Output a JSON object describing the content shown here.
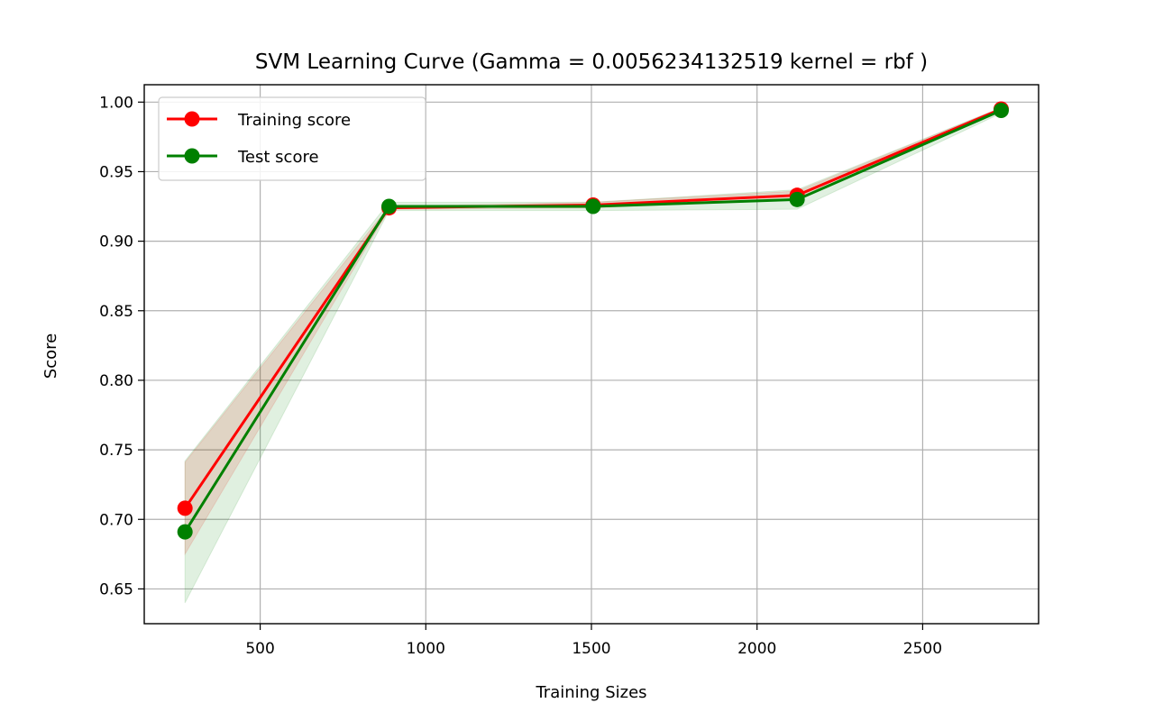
{
  "chart_data": {
    "type": "line",
    "title": "SVM Learning Curve (Gamma = 0.0056234132519 kernel =  rbf )",
    "xlabel": "Training Sizes",
    "ylabel": "Score",
    "xlim": [
      150,
      2850
    ],
    "ylim": [
      0.625,
      1.0125
    ],
    "xticks": [
      500,
      1000,
      1500,
      2000,
      2500
    ],
    "xtick_labels": [
      "500",
      "1000",
      "1500",
      "2000",
      "2500"
    ],
    "yticks": [
      0.65,
      0.7,
      0.75,
      0.8,
      0.85,
      0.9,
      0.95,
      1.0
    ],
    "ytick_labels": [
      "0.65",
      "0.70",
      "0.75",
      "0.80",
      "0.85",
      "0.90",
      "0.95",
      "1.00"
    ],
    "grid": true,
    "legend_position": "top-left",
    "x": [
      273,
      889,
      1505,
      2121,
      2737
    ],
    "series": [
      {
        "name": "Training score",
        "color": "#ff0000",
        "values": [
          0.708,
          0.924,
          0.926,
          0.933,
          0.995
        ],
        "band_lower": [
          0.675,
          0.923,
          0.924,
          0.93,
          0.994
        ],
        "band_upper": [
          0.741,
          0.925,
          0.928,
          0.936,
          0.996
        ]
      },
      {
        "name": "Test score",
        "color": "#008000",
        "values": [
          0.691,
          0.925,
          0.925,
          0.93,
          0.994
        ],
        "band_lower": [
          0.64,
          0.922,
          0.922,
          0.923,
          0.992
        ],
        "band_upper": [
          0.742,
          0.928,
          0.928,
          0.937,
          0.996
        ]
      }
    ]
  }
}
